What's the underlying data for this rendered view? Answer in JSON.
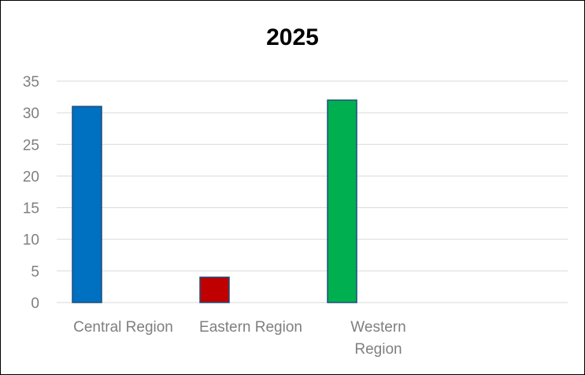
{
  "chart_data": {
    "type": "bar",
    "title": "2025",
    "xlabel": "",
    "ylabel": "",
    "categories": [
      "Central Region",
      "Eastern Region",
      "Western Region"
    ],
    "category_label_lines": [
      [
        "Central Region"
      ],
      [
        "Eastern Region"
      ],
      [
        "Western",
        "Region"
      ]
    ],
    "values": [
      31,
      4,
      32
    ],
    "bar_colors": [
      "#0070C0",
      "#C00000",
      "#00B050"
    ],
    "bar_border_color": "#1F4E79",
    "ylim": [
      0,
      35
    ],
    "yticks": [
      0,
      5,
      10,
      15,
      20,
      25,
      30,
      35
    ],
    "grid": true,
    "grid_color": "#d9d9d9",
    "axis_text_color": "#7f7f7f",
    "legend": "none"
  }
}
